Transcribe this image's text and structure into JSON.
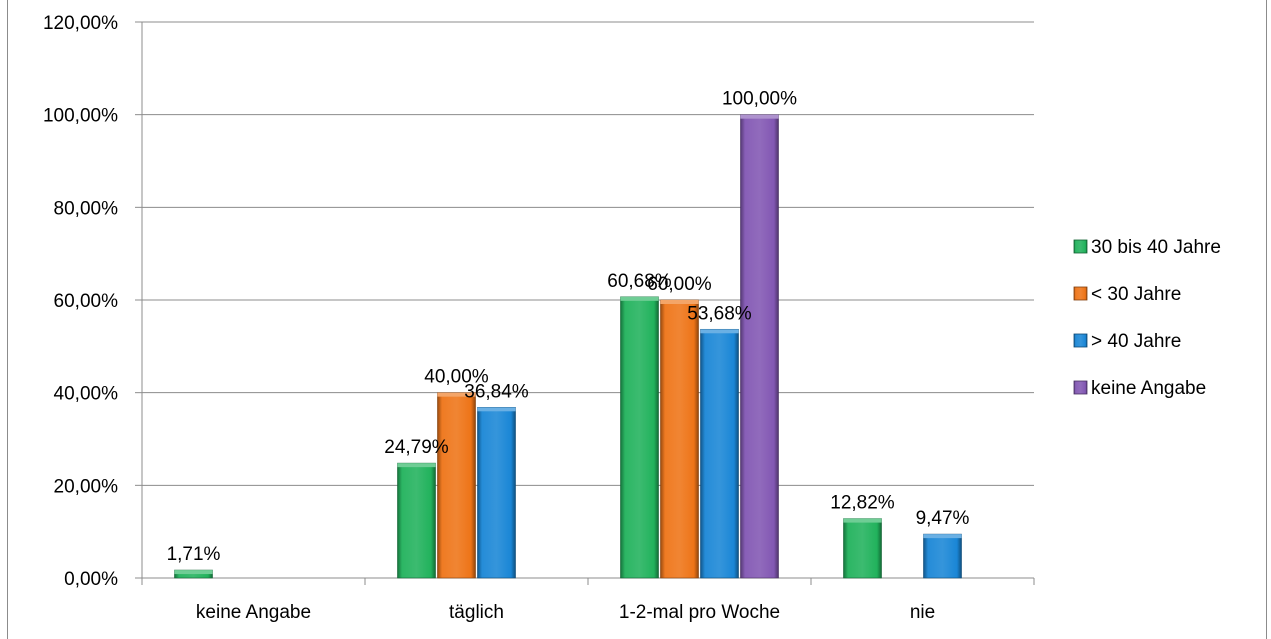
{
  "chart_data": {
    "type": "bar",
    "title": "",
    "xlabel": "",
    "ylabel": "",
    "ylim": [
      0,
      1.2
    ],
    "yticks": [
      "0,00%",
      "20,00%",
      "40,00%",
      "60,00%",
      "80,00%",
      "100,00%",
      "120,00%"
    ],
    "grid": true,
    "legend_position": "right",
    "categories": [
      "keine Angabe",
      "täglich",
      "1-2-mal pro Woche",
      "nie"
    ],
    "series": [
      {
        "name": "30 bis 40 Jahre",
        "color": "#21b25c",
        "values": [
          0.0171,
          0.2479,
          0.6068,
          0.1282
        ],
        "labels": [
          "1,71%",
          "24,79%",
          "60,68%",
          "12,82%"
        ]
      },
      {
        "name": "< 30 Jahre",
        "color": "#ee7417",
        "values": [
          null,
          0.4,
          0.6,
          null
        ],
        "labels": [
          "",
          "40,00%",
          "60,00%",
          ""
        ]
      },
      {
        "name": "> 40 Jahre",
        "color": "#1a86d6",
        "values": [
          null,
          0.3684,
          0.5368,
          0.0947
        ],
        "labels": [
          "",
          "36,84%",
          "53,68%",
          "9,47%"
        ]
      },
      {
        "name": "keine Angabe",
        "color": "#8257b3",
        "values": [
          null,
          null,
          1.0,
          null
        ],
        "labels": [
          "",
          "",
          "100,00%",
          ""
        ]
      }
    ]
  }
}
